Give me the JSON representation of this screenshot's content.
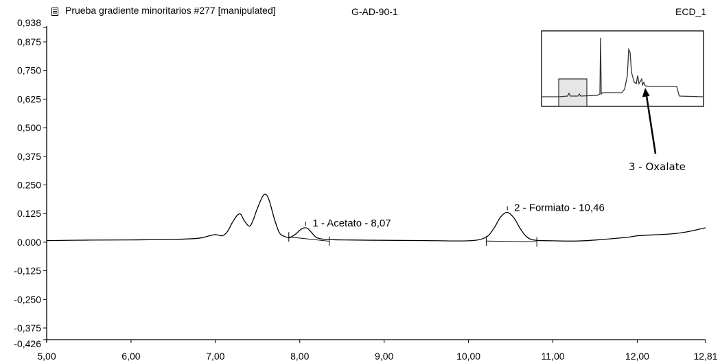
{
  "header": {
    "title": "Prueba gradiente minoritarios #277 [manipulated]",
    "sample": "G-AD-90-1",
    "channel": "ECD_1",
    "icon": "document-icon"
  },
  "chart_data": {
    "type": "line",
    "title": "Prueba gradiente minoritarios #277 [manipulated]",
    "xlim": [
      5.0,
      12.81
    ],
    "ylim": [
      -0.426,
      0.938
    ],
    "x_ticks": [
      "5,00",
      "6,00",
      "7,00",
      "8,00",
      "9,00",
      "10,00",
      "11,00",
      "12,00",
      "12,81"
    ],
    "x_tick_values": [
      5.0,
      6.0,
      7.0,
      8.0,
      9.0,
      10.0,
      11.0,
      12.0,
      12.81
    ],
    "y_ticks": [
      "0,938",
      "0,875",
      "0,750",
      "0,625",
      "0,500",
      "0,375",
      "0.250",
      "0.125",
      "0.000",
      "-0,125",
      "-0,250",
      "-0,375",
      "-0,426"
    ],
    "y_tick_values": [
      0.938,
      0.875,
      0.75,
      0.625,
      0.5,
      0.375,
      0.25,
      0.125,
      0.0,
      -0.125,
      -0.25,
      -0.375,
      -0.426
    ],
    "grid": false,
    "legend": "none",
    "series": [
      {
        "color": "#000000",
        "x": [
          5.0,
          5.5,
          6.0,
          6.5,
          6.8,
          6.93,
          7.0,
          7.08,
          7.14,
          7.2,
          7.26,
          7.3,
          7.34,
          7.4,
          7.44,
          7.5,
          7.56,
          7.6,
          7.64,
          7.7,
          7.76,
          7.82,
          7.88,
          7.95,
          8.0,
          8.04,
          8.07,
          8.1,
          8.14,
          8.2,
          8.3,
          8.5,
          9.0,
          9.5,
          10.0,
          10.2,
          10.3,
          10.38,
          10.46,
          10.54,
          10.62,
          10.7,
          10.8,
          11.0,
          11.3,
          11.6,
          11.9,
          12.0,
          12.2,
          12.4,
          12.6,
          12.81
        ],
        "y": [
          0.007,
          0.009,
          0.01,
          0.012,
          0.017,
          0.028,
          0.033,
          0.028,
          0.045,
          0.085,
          0.118,
          0.122,
          0.095,
          0.07,
          0.09,
          0.15,
          0.2,
          0.208,
          0.18,
          0.1,
          0.04,
          0.025,
          0.02,
          0.035,
          0.052,
          0.061,
          0.063,
          0.058,
          0.042,
          0.02,
          0.012,
          0.01,
          0.008,
          0.007,
          0.006,
          0.02,
          0.06,
          0.11,
          0.13,
          0.105,
          0.055,
          0.02,
          0.008,
          0.006,
          0.005,
          0.012,
          0.022,
          0.028,
          0.032,
          0.036,
          0.046,
          0.063
        ]
      }
    ],
    "baselines": [
      {
        "x": [
          7.87,
          8.35
        ],
        "y": [
          0.023,
          0.004
        ]
      },
      {
        "x": [
          10.21,
          10.81
        ],
        "y": [
          0.005,
          0.001
        ]
      }
    ],
    "integration_marks": [
      {
        "x": 7.87,
        "y": 0.023
      },
      {
        "x": 8.35,
        "y": 0.004
      },
      {
        "x": 10.21,
        "y": 0.005
      },
      {
        "x": 10.81,
        "y": 0.001
      }
    ],
    "peak_labels": [
      {
        "text": "1 - Acetato - 8,07",
        "x": 8.07,
        "y": 0.063
      },
      {
        "text": "2 - Formiato - 10,46",
        "x": 10.46,
        "y": 0.13
      }
    ],
    "inset": {
      "annotation": "3 - Oxalate"
    }
  }
}
